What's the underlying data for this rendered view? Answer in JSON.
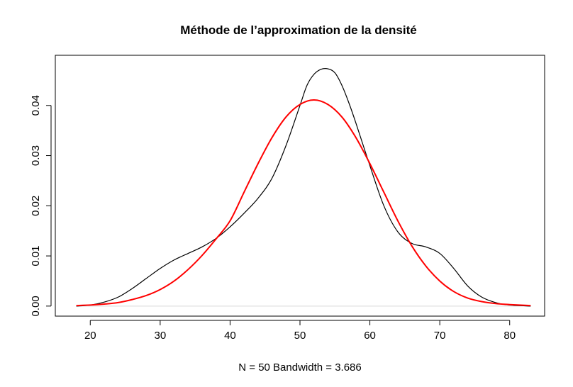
{
  "chart_data": {
    "type": "line",
    "title": "Méthode de l’approximation de la densité",
    "xlabel": "N = 50   Bandwidth = 3.686",
    "ylabel": "",
    "xlim": [
      15,
      85
    ],
    "ylim": [
      -0.002,
      0.05
    ],
    "x_ticks": [
      20,
      30,
      40,
      50,
      60,
      70,
      80
    ],
    "y_ticks": [
      0.0,
      0.01,
      0.02,
      0.03,
      0.04
    ],
    "x_tick_labels": [
      "20",
      "30",
      "40",
      "50",
      "60",
      "70",
      "80"
    ],
    "y_tick_labels": [
      "0.00",
      "0.01",
      "0.02",
      "0.03",
      "0.04"
    ],
    "grid": false,
    "baseline": 0,
    "series": [
      {
        "color": "#000000",
        "x": [
          18,
          20,
          22,
          24,
          26,
          28,
          30,
          32,
          34,
          36,
          38,
          40,
          42,
          44,
          46,
          48,
          50,
          51,
          52,
          53,
          54,
          55,
          56,
          57,
          58,
          60,
          62,
          64,
          66,
          68,
          70,
          72,
          74,
          76,
          78,
          80,
          83
        ],
        "y": [
          0.0,
          0.0002,
          0.0008,
          0.0018,
          0.0035,
          0.0055,
          0.0075,
          0.0092,
          0.0105,
          0.0118,
          0.0135,
          0.0158,
          0.0185,
          0.0215,
          0.0255,
          0.032,
          0.04,
          0.044,
          0.0462,
          0.0472,
          0.0473,
          0.0465,
          0.044,
          0.0405,
          0.0365,
          0.028,
          0.02,
          0.0148,
          0.0125,
          0.0118,
          0.0105,
          0.0075,
          0.004,
          0.0018,
          0.0007,
          0.0002,
          0.0
        ]
      },
      {
        "color": "#ff0000",
        "x": [
          18,
          20,
          22,
          24,
          26,
          28,
          30,
          32,
          34,
          36,
          38,
          40,
          42,
          44,
          46,
          48,
          50,
          52,
          54,
          56,
          58,
          60,
          62,
          64,
          66,
          68,
          70,
          72,
          74,
          76,
          78,
          80,
          83
        ],
        "y": [
          0.0001,
          0.0002,
          0.0004,
          0.0007,
          0.0013,
          0.0021,
          0.0033,
          0.005,
          0.0073,
          0.0101,
          0.0134,
          0.017,
          0.0227,
          0.0284,
          0.0336,
          0.0377,
          0.0402,
          0.0411,
          0.0402,
          0.0377,
          0.0336,
          0.0284,
          0.0227,
          0.017,
          0.012,
          0.008,
          0.005,
          0.0029,
          0.0016,
          0.0009,
          0.0005,
          0.0003,
          0.0001
        ]
      }
    ]
  }
}
